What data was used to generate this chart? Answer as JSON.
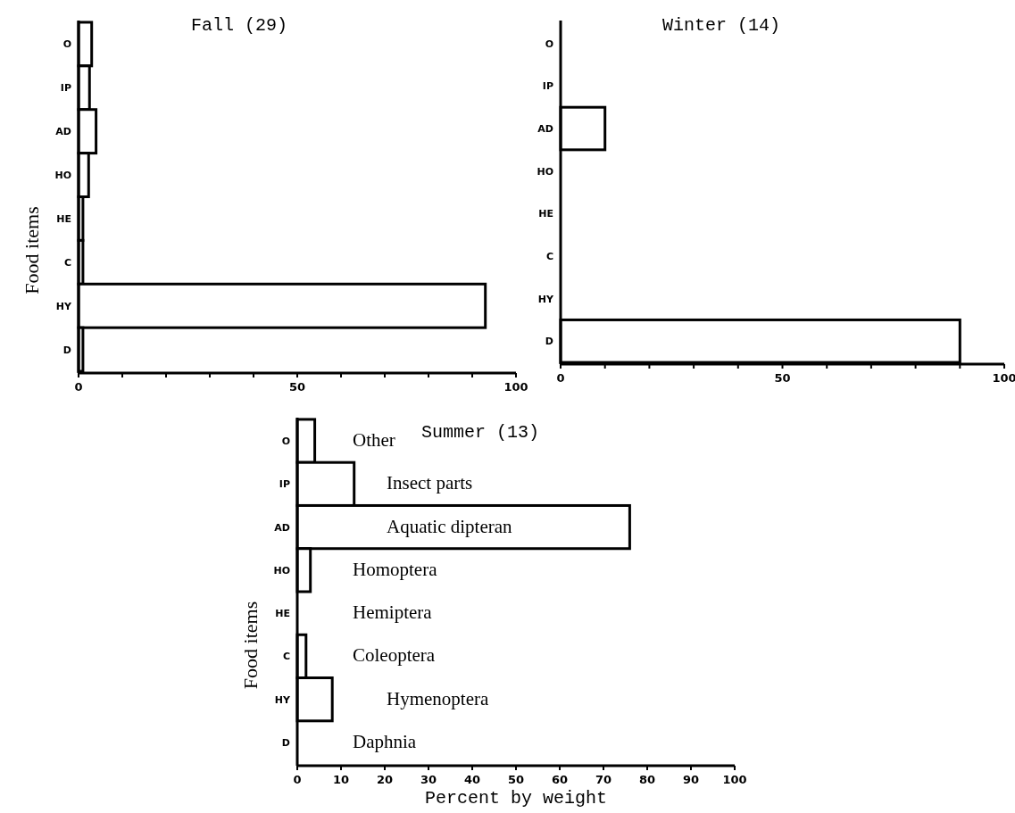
{
  "chart_data": [
    {
      "type": "bar",
      "orientation": "horizontal",
      "title": "Fall (29)",
      "ylabel": "Food items",
      "categories": [
        "O",
        "IP",
        "AD",
        "HO",
        "HE",
        "C",
        "HY",
        "D"
      ],
      "series": [
        {
          "color": "#ffffff",
          "values": [
            3,
            2.5,
            4,
            2.3,
            1,
            1,
            93,
            1
          ]
        }
      ],
      "xlim": [
        0,
        100
      ],
      "xticks": [
        0,
        {
          "value": 10,
          "label": null
        },
        {
          "value": 20,
          "label": null
        },
        {
          "value": 30,
          "label": null
        },
        {
          "value": 40,
          "label": null
        },
        50,
        {
          "value": 60,
          "label": null
        },
        {
          "value": 70,
          "label": null
        },
        {
          "value": 80,
          "label": null
        },
        {
          "value": 90,
          "label": null
        },
        100
      ]
    },
    {
      "type": "bar",
      "orientation": "horizontal",
      "title": "Winter (14)",
      "categories": [
        "O",
        "IP",
        "AD",
        "HO",
        "HE",
        "C",
        "HY",
        "D"
      ],
      "series": [
        {
          "color": "#ffffff",
          "values": [
            0,
            0,
            10,
            0,
            0,
            0,
            0,
            90
          ]
        }
      ],
      "xlim": [
        0,
        100
      ],
      "xticks": [
        0,
        {
          "value": 10,
          "label": null
        },
        {
          "value": 20,
          "label": null
        },
        {
          "value": 30,
          "label": null
        },
        {
          "value": 40,
          "label": null
        },
        50,
        {
          "value": 60,
          "label": null
        },
        {
          "value": 70,
          "label": null
        },
        {
          "value": 80,
          "label": null
        },
        {
          "value": 90,
          "label": null
        },
        100
      ]
    },
    {
      "type": "bar",
      "orientation": "horizontal",
      "title": "Summer (13)",
      "ylabel": "Food items",
      "xlabel": "Percent by weight",
      "categories": [
        "O",
        "IP",
        "AD",
        "HO",
        "HE",
        "C",
        "HY",
        "D"
      ],
      "series": [
        {
          "color": "#ffffff",
          "values": [
            4,
            13,
            76,
            3,
            0,
            2,
            8,
            0
          ]
        }
      ],
      "xlim": [
        0,
        100
      ],
      "xticks": [
        0,
        10,
        20,
        30,
        40,
        50,
        60,
        70,
        80,
        90,
        100
      ],
      "annotations": [
        "Other",
        "Insect parts",
        "Aquatic dipteran",
        "Homoptera",
        "Hemiptera",
        "Coleoptera",
        "Hymenoptera",
        "Daphnia"
      ]
    }
  ]
}
